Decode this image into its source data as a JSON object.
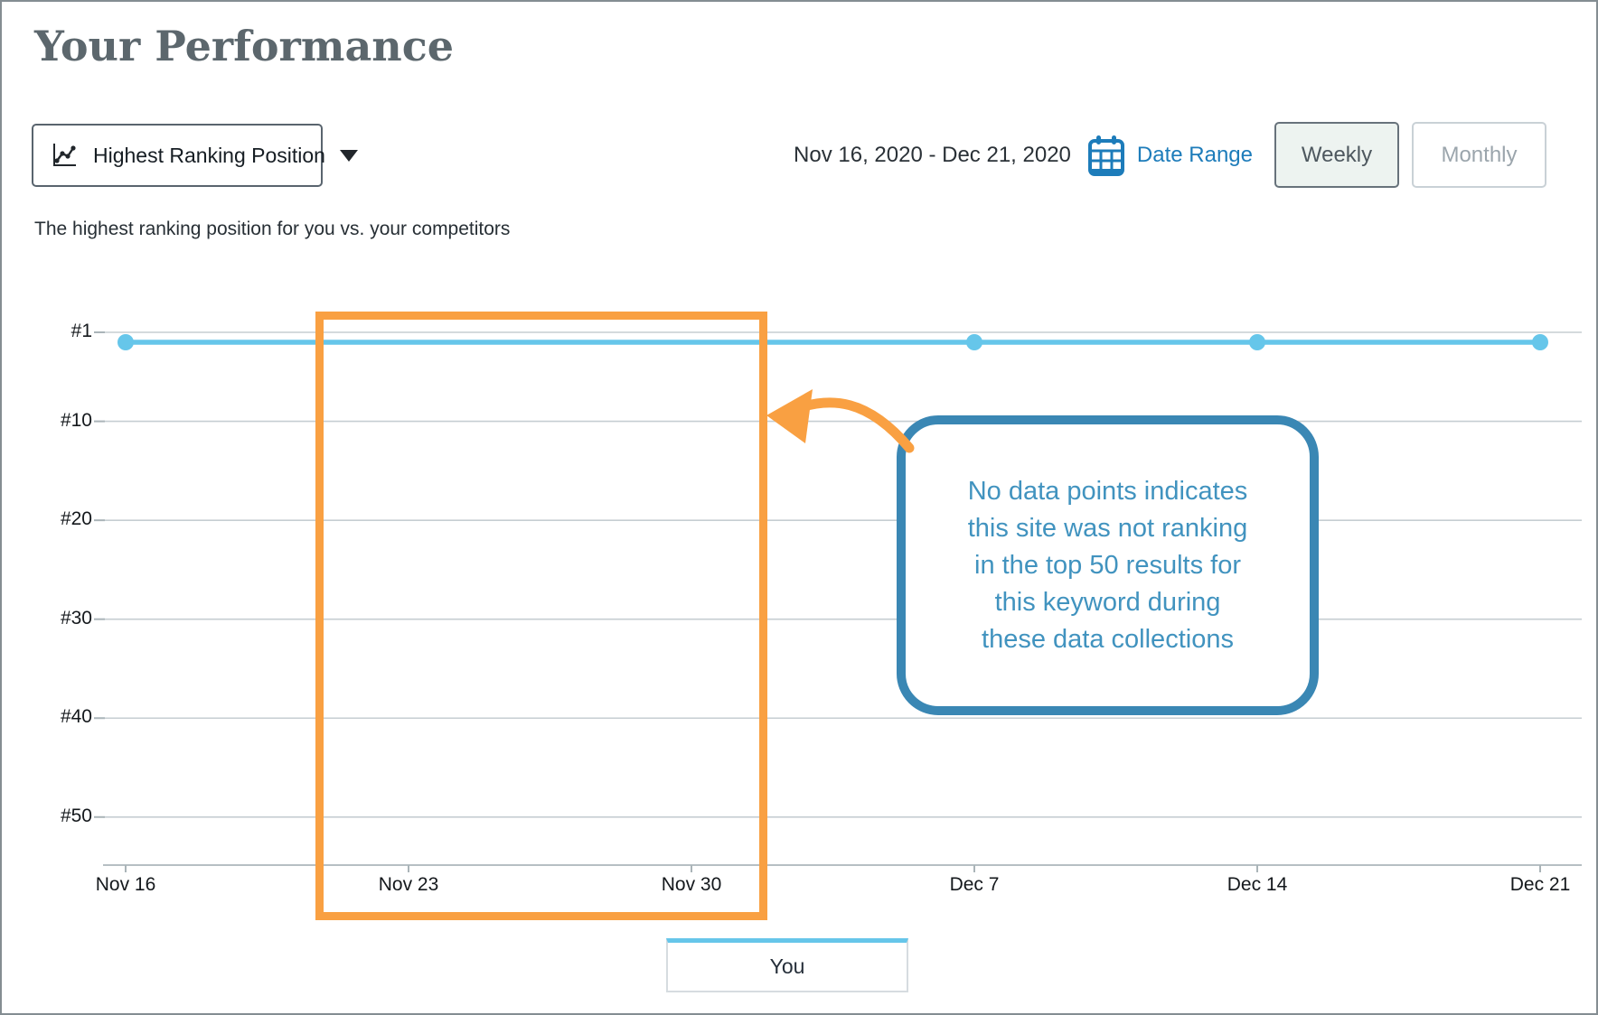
{
  "colors": {
    "accent_blue": "#1d7cba",
    "series_blue": "#66c6ea",
    "annotation_orange": "#f9a042",
    "callout_border": "#3a87b4",
    "callout_text": "#4193bf",
    "gridline_gray": "#c6ced2"
  },
  "header": {
    "title": "Your Performance"
  },
  "controls": {
    "metric_dropdown": {
      "label": "Highest Ranking Position",
      "icon": "line-chart-icon",
      "caret_icon": "chevron-down-icon"
    },
    "date_range": {
      "value": "Nov 16, 2020 - Dec 21, 2020",
      "icon": "calendar-icon",
      "link_label": "Date Range"
    },
    "granularity": {
      "options": [
        "Weekly",
        "Monthly"
      ],
      "selected": "Weekly",
      "weekly_label": "Weekly",
      "monthly_label": "Monthly"
    }
  },
  "subtitle": "The highest ranking position for you vs. your competitors",
  "chart_data": {
    "type": "line",
    "title": "Highest Ranking Position",
    "x": [
      "Nov 16",
      "Nov 23",
      "Nov 30",
      "Dec 7",
      "Dec 14",
      "Dec 21"
    ],
    "series": [
      {
        "name": "You",
        "color": "#66c6ea",
        "values": [
          1,
          null,
          null,
          1,
          1,
          1
        ]
      }
    ],
    "missing_points": [
      "Nov 23",
      "Nov 30"
    ],
    "y_ticks": [
      {
        "label": "#1",
        "value": 1
      },
      {
        "label": "#10",
        "value": 10
      },
      {
        "label": "#20",
        "value": 20
      },
      {
        "label": "#30",
        "value": 30
      },
      {
        "label": "#40",
        "value": 40
      },
      {
        "label": "#50",
        "value": 50
      }
    ],
    "y_axis": {
      "inverted": true,
      "min": 1,
      "max": 55
    },
    "grid": true,
    "legend_position": "bottom"
  },
  "annotations": {
    "highlight_box": {
      "from": "Nov 23",
      "to": "Nov 30",
      "color": "#f9a042"
    },
    "callout": {
      "lines": [
        "No data points indicates",
        "this site was not ranking",
        "in the top 50 results for",
        "this keyword during",
        "these data collections"
      ],
      "border_color": "#3a87b4",
      "text_color": "#4193bf"
    }
  },
  "legend": {
    "items": [
      {
        "label": "You",
        "color": "#66c6ea"
      }
    ]
  }
}
